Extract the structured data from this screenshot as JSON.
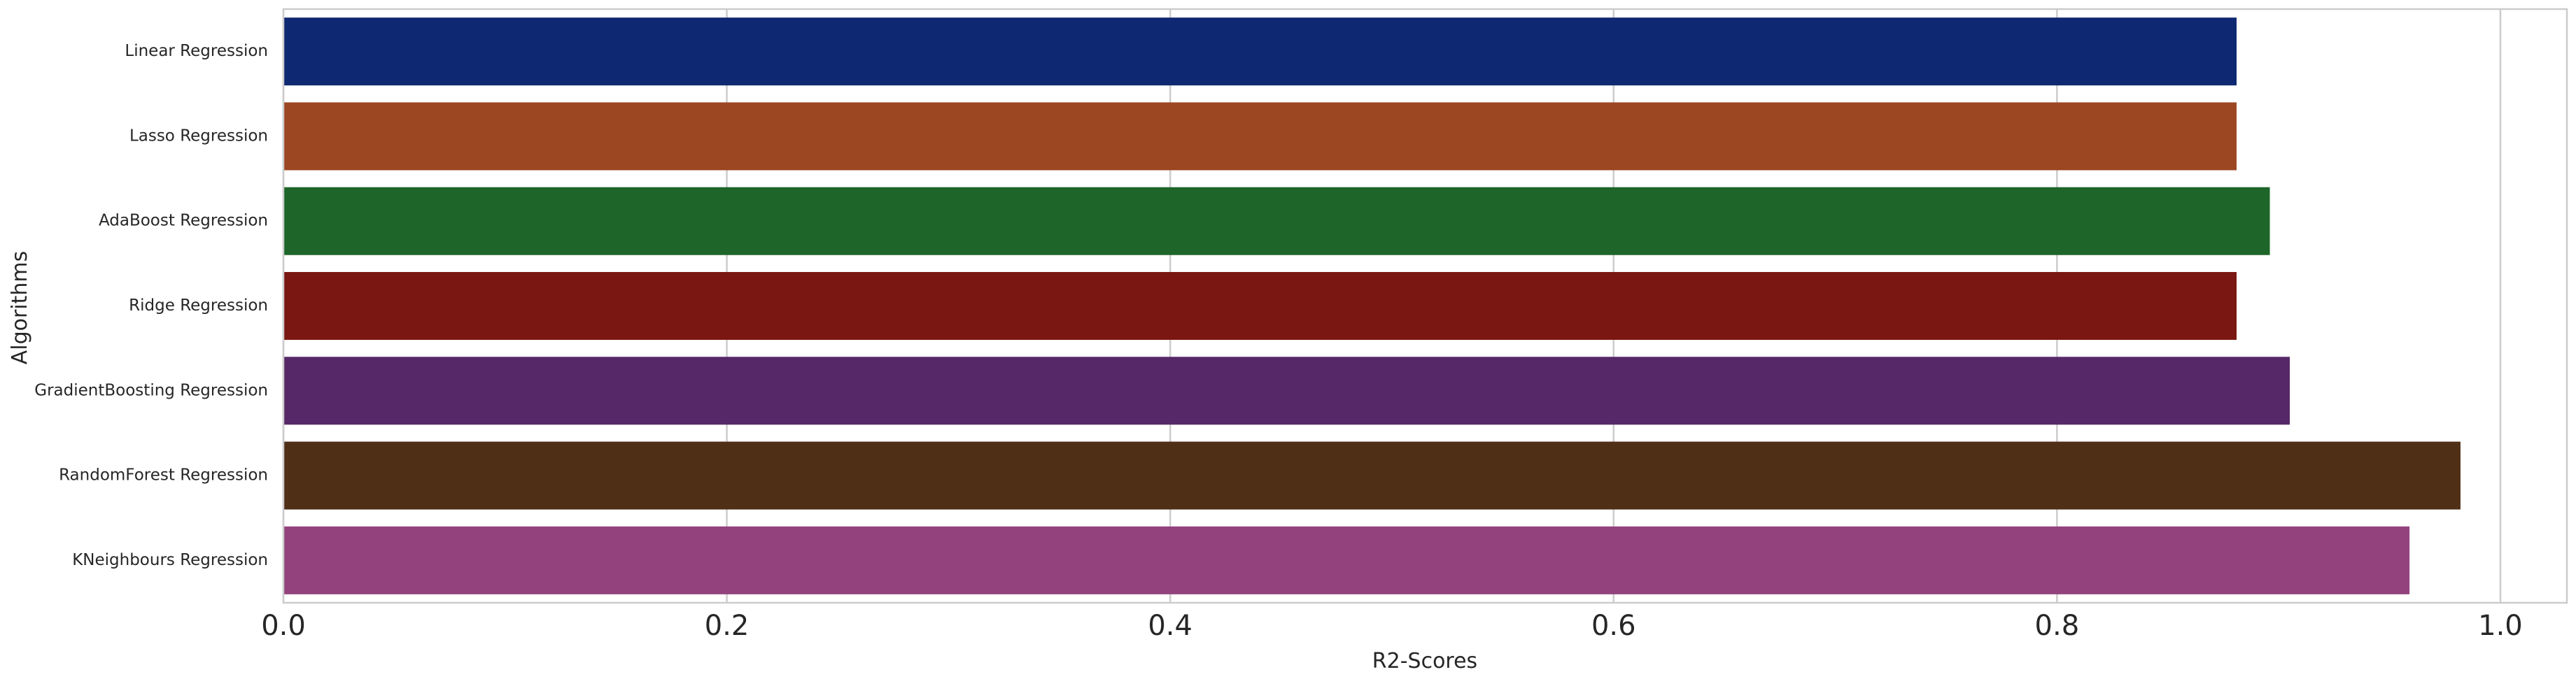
{
  "chart_data": {
    "type": "bar",
    "orientation": "horizontal",
    "categories": [
      "Linear Regression",
      "Lasso Regression",
      "AdaBoost Regression",
      "Ridge Regression",
      "GradientBoosting Regression",
      "RandomForest Regression",
      "KNeighbours Regression"
    ],
    "values": [
      0.881,
      0.881,
      0.896,
      0.881,
      0.905,
      0.982,
      0.959
    ],
    "colors": [
      "#0f2872",
      "#9c4622",
      "#1d6528",
      "#7a1712",
      "#562867",
      "#502f17",
      "#93427d"
    ],
    "title": "",
    "xlabel": "R2-Scores",
    "ylabel": "Algorithms",
    "xlim": [
      0,
      1.03
    ],
    "xticks": [
      "0.0",
      "0.2",
      "0.4",
      "0.6",
      "0.8",
      "1.0"
    ],
    "xtick_values": [
      0,
      0.2,
      0.4,
      0.6,
      0.8,
      1.0
    ],
    "grid": true,
    "grid_color": "#cccccc"
  }
}
